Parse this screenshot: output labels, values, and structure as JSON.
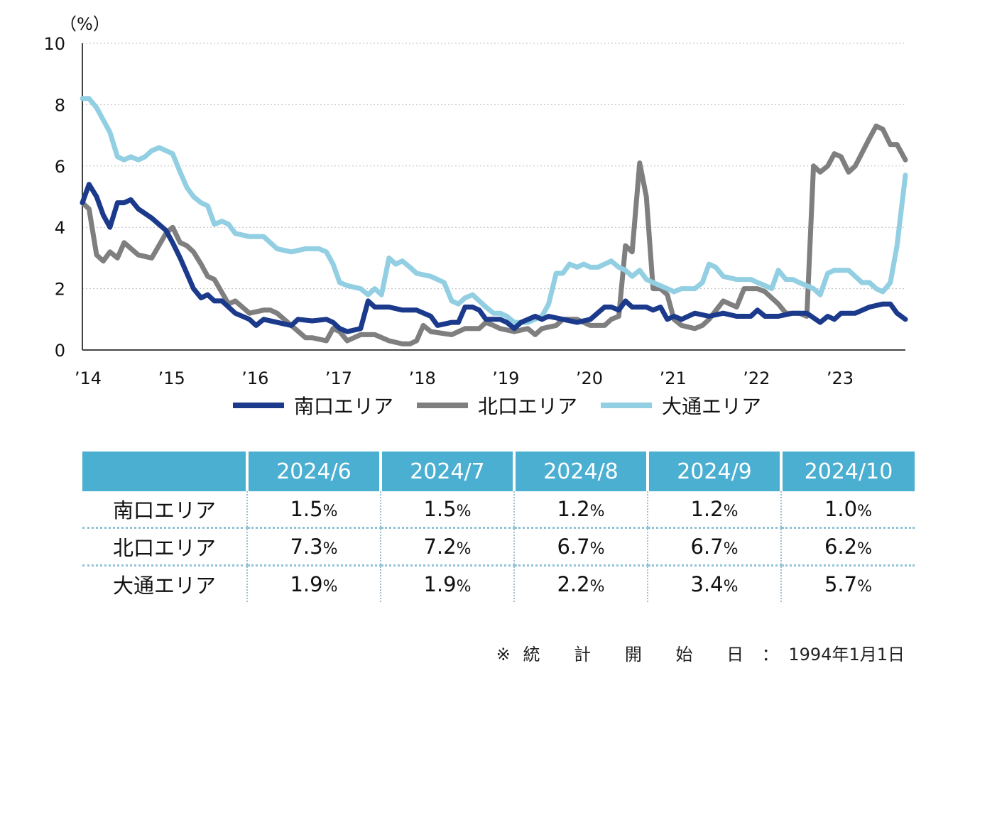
{
  "chart_data": {
    "type": "line",
    "unit_label": "（%）",
    "ylim": [
      0,
      10
    ],
    "yticks": [
      0,
      2,
      4,
      6,
      8,
      10
    ],
    "xlim": [
      2014.0,
      2023.85
    ],
    "xticks": [
      {
        "x": 2014,
        "label": "'14"
      },
      {
        "x": 2015,
        "label": "'15"
      },
      {
        "x": 2016,
        "label": "'16"
      },
      {
        "x": 2017,
        "label": "'17"
      },
      {
        "x": 2018,
        "label": "'18"
      },
      {
        "x": 2019,
        "label": "'19"
      },
      {
        "x": 2020,
        "label": "'20"
      },
      {
        "x": 2021,
        "label": "'21"
      },
      {
        "x": 2022,
        "label": "'22"
      },
      {
        "x": 2023,
        "label": "'23"
      }
    ],
    "grid": "horizontal dotted",
    "legend_position": "bottom",
    "series": [
      {
        "name": "南口エリア",
        "color": "#1b3a8c",
        "points": [
          [
            2014.0,
            4.8
          ],
          [
            2014.08,
            5.4
          ],
          [
            2014.17,
            5.0
          ],
          [
            2014.25,
            4.4
          ],
          [
            2014.33,
            4.0
          ],
          [
            2014.42,
            4.8
          ],
          [
            2014.5,
            4.8
          ],
          [
            2014.58,
            4.9
          ],
          [
            2014.67,
            4.6
          ],
          [
            2014.83,
            4.3
          ],
          [
            2015.0,
            3.9
          ],
          [
            2015.08,
            3.5
          ],
          [
            2015.17,
            3.0
          ],
          [
            2015.25,
            2.5
          ],
          [
            2015.33,
            2.0
          ],
          [
            2015.42,
            1.7
          ],
          [
            2015.5,
            1.8
          ],
          [
            2015.58,
            1.6
          ],
          [
            2015.67,
            1.6
          ],
          [
            2015.83,
            1.2
          ],
          [
            2016.0,
            1.0
          ],
          [
            2016.08,
            0.8
          ],
          [
            2016.17,
            1.0
          ],
          [
            2016.33,
            0.9
          ],
          [
            2016.5,
            0.8
          ],
          [
            2016.58,
            1.0
          ],
          [
            2016.75,
            0.95
          ],
          [
            2016.92,
            1.0
          ],
          [
            2017.0,
            0.9
          ],
          [
            2017.08,
            0.7
          ],
          [
            2017.17,
            0.6
          ],
          [
            2017.33,
            0.7
          ],
          [
            2017.42,
            1.6
          ],
          [
            2017.5,
            1.4
          ],
          [
            2017.67,
            1.4
          ],
          [
            2017.83,
            1.3
          ],
          [
            2018.0,
            1.3
          ],
          [
            2018.17,
            1.1
          ],
          [
            2018.25,
            0.8
          ],
          [
            2018.42,
            0.9
          ],
          [
            2018.5,
            0.9
          ],
          [
            2018.58,
            1.4
          ],
          [
            2018.67,
            1.4
          ],
          [
            2018.75,
            1.3
          ],
          [
            2018.83,
            1.0
          ],
          [
            2019.0,
            1.0
          ],
          [
            2019.08,
            0.9
          ],
          [
            2019.17,
            0.7
          ],
          [
            2019.25,
            0.9
          ],
          [
            2019.42,
            1.1
          ],
          [
            2019.5,
            1.0
          ],
          [
            2019.58,
            1.1
          ],
          [
            2019.75,
            1.0
          ],
          [
            2019.92,
            0.9
          ],
          [
            2020.08,
            1.0
          ],
          [
            2020.25,
            1.4
          ],
          [
            2020.33,
            1.4
          ],
          [
            2020.42,
            1.3
          ],
          [
            2020.5,
            1.6
          ],
          [
            2020.58,
            1.4
          ],
          [
            2020.75,
            1.4
          ],
          [
            2020.83,
            1.3
          ],
          [
            2020.92,
            1.4
          ],
          [
            2021.0,
            1.0
          ],
          [
            2021.08,
            1.1
          ],
          [
            2021.17,
            1.0
          ],
          [
            2021.33,
            1.2
          ],
          [
            2021.5,
            1.1
          ],
          [
            2021.67,
            1.2
          ],
          [
            2021.83,
            1.1
          ],
          [
            2022.0,
            1.1
          ],
          [
            2022.08,
            1.3
          ],
          [
            2022.17,
            1.1
          ],
          [
            2022.33,
            1.1
          ],
          [
            2022.5,
            1.2
          ],
          [
            2022.67,
            1.2
          ],
          [
            2022.83,
            0.9
          ],
          [
            2022.92,
            1.1
          ],
          [
            2023.0,
            1.0
          ],
          [
            2023.08,
            1.2
          ],
          [
            2023.25,
            1.2
          ],
          [
            2023.42,
            1.4
          ],
          [
            2023.58,
            1.5
          ],
          [
            2023.67,
            1.5
          ],
          [
            2023.75,
            1.2
          ],
          [
            2023.85,
            1.0
          ]
        ]
      },
      {
        "name": "北口エリア",
        "color": "#7f7f7f",
        "points": [
          [
            2014.0,
            4.8
          ],
          [
            2014.08,
            4.6
          ],
          [
            2014.17,
            3.1
          ],
          [
            2014.25,
            2.9
          ],
          [
            2014.33,
            3.2
          ],
          [
            2014.42,
            3.0
          ],
          [
            2014.5,
            3.5
          ],
          [
            2014.67,
            3.1
          ],
          [
            2014.83,
            3.0
          ],
          [
            2015.0,
            3.8
          ],
          [
            2015.08,
            4.0
          ],
          [
            2015.17,
            3.5
          ],
          [
            2015.25,
            3.4
          ],
          [
            2015.33,
            3.2
          ],
          [
            2015.42,
            2.8
          ],
          [
            2015.5,
            2.4
          ],
          [
            2015.58,
            2.3
          ],
          [
            2015.75,
            1.5
          ],
          [
            2015.83,
            1.6
          ],
          [
            2016.0,
            1.2
          ],
          [
            2016.17,
            1.3
          ],
          [
            2016.25,
            1.3
          ],
          [
            2016.33,
            1.2
          ],
          [
            2016.5,
            0.8
          ],
          [
            2016.67,
            0.4
          ],
          [
            2016.75,
            0.4
          ],
          [
            2016.92,
            0.3
          ],
          [
            2017.0,
            0.7
          ],
          [
            2017.08,
            0.6
          ],
          [
            2017.17,
            0.3
          ],
          [
            2017.33,
            0.5
          ],
          [
            2017.5,
            0.5
          ],
          [
            2017.67,
            0.3
          ],
          [
            2017.83,
            0.2
          ],
          [
            2017.92,
            0.2
          ],
          [
            2018.0,
            0.3
          ],
          [
            2018.08,
            0.8
          ],
          [
            2018.17,
            0.6
          ],
          [
            2018.42,
            0.5
          ],
          [
            2018.58,
            0.7
          ],
          [
            2018.75,
            0.7
          ],
          [
            2018.83,
            0.9
          ],
          [
            2018.92,
            0.8
          ],
          [
            2019.0,
            0.7
          ],
          [
            2019.17,
            0.6
          ],
          [
            2019.33,
            0.7
          ],
          [
            2019.42,
            0.5
          ],
          [
            2019.5,
            0.7
          ],
          [
            2019.67,
            0.8
          ],
          [
            2019.75,
            1.0
          ],
          [
            2019.92,
            1.0
          ],
          [
            2020.08,
            0.8
          ],
          [
            2020.25,
            0.8
          ],
          [
            2020.33,
            1.0
          ],
          [
            2020.42,
            1.1
          ],
          [
            2020.5,
            3.4
          ],
          [
            2020.58,
            3.2
          ],
          [
            2020.67,
            6.1
          ],
          [
            2020.75,
            5.0
          ],
          [
            2020.83,
            2.0
          ],
          [
            2020.92,
            2.0
          ],
          [
            2021.0,
            1.8
          ],
          [
            2021.08,
            1.0
          ],
          [
            2021.17,
            0.8
          ],
          [
            2021.33,
            0.7
          ],
          [
            2021.42,
            0.8
          ],
          [
            2021.5,
            1.0
          ],
          [
            2021.67,
            1.6
          ],
          [
            2021.75,
            1.5
          ],
          [
            2021.83,
            1.4
          ],
          [
            2021.92,
            2.0
          ],
          [
            2022.0,
            2.0
          ],
          [
            2022.08,
            2.0
          ],
          [
            2022.17,
            1.9
          ],
          [
            2022.33,
            1.5
          ],
          [
            2022.42,
            1.2
          ],
          [
            2022.58,
            1.2
          ],
          [
            2022.67,
            1.1
          ],
          [
            2022.75,
            6.0
          ],
          [
            2022.83,
            5.8
          ],
          [
            2022.92,
            6.0
          ],
          [
            2023.0,
            6.4
          ],
          [
            2023.08,
            6.3
          ],
          [
            2023.17,
            5.8
          ],
          [
            2023.25,
            6.0
          ],
          [
            2023.42,
            6.9
          ],
          [
            2023.5,
            7.3
          ],
          [
            2023.58,
            7.2
          ],
          [
            2023.67,
            6.7
          ],
          [
            2023.75,
            6.7
          ],
          [
            2023.85,
            6.2
          ]
        ]
      },
      {
        "name": "大通エリア",
        "color": "#92cfe2",
        "points": [
          [
            2014.0,
            8.2
          ],
          [
            2014.08,
            8.2
          ],
          [
            2014.17,
            7.9
          ],
          [
            2014.25,
            7.5
          ],
          [
            2014.33,
            7.1
          ],
          [
            2014.42,
            6.3
          ],
          [
            2014.5,
            6.2
          ],
          [
            2014.58,
            6.3
          ],
          [
            2014.67,
            6.2
          ],
          [
            2014.75,
            6.3
          ],
          [
            2014.83,
            6.5
          ],
          [
            2014.92,
            6.6
          ],
          [
            2015.0,
            6.5
          ],
          [
            2015.08,
            6.4
          ],
          [
            2015.17,
            5.8
          ],
          [
            2015.25,
            5.3
          ],
          [
            2015.33,
            5.0
          ],
          [
            2015.42,
            4.8
          ],
          [
            2015.5,
            4.7
          ],
          [
            2015.58,
            4.1
          ],
          [
            2015.67,
            4.2
          ],
          [
            2015.75,
            4.1
          ],
          [
            2015.83,
            3.8
          ],
          [
            2016.0,
            3.7
          ],
          [
            2016.08,
            3.7
          ],
          [
            2016.17,
            3.7
          ],
          [
            2016.25,
            3.5
          ],
          [
            2016.33,
            3.3
          ],
          [
            2016.5,
            3.2
          ],
          [
            2016.67,
            3.3
          ],
          [
            2016.83,
            3.3
          ],
          [
            2016.92,
            3.2
          ],
          [
            2017.0,
            2.8
          ],
          [
            2017.08,
            2.2
          ],
          [
            2017.17,
            2.1
          ],
          [
            2017.33,
            2.0
          ],
          [
            2017.42,
            1.8
          ],
          [
            2017.5,
            2.0
          ],
          [
            2017.58,
            1.8
          ],
          [
            2017.67,
            3.0
          ],
          [
            2017.75,
            2.8
          ],
          [
            2017.83,
            2.9
          ],
          [
            2017.92,
            2.7
          ],
          [
            2018.0,
            2.5
          ],
          [
            2018.17,
            2.4
          ],
          [
            2018.33,
            2.2
          ],
          [
            2018.42,
            1.6
          ],
          [
            2018.5,
            1.5
          ],
          [
            2018.58,
            1.7
          ],
          [
            2018.67,
            1.8
          ],
          [
            2018.83,
            1.4
          ],
          [
            2018.92,
            1.2
          ],
          [
            2019.0,
            1.2
          ],
          [
            2019.08,
            1.1
          ],
          [
            2019.17,
            0.9
          ],
          [
            2019.33,
            0.9
          ],
          [
            2019.5,
            1.1
          ],
          [
            2019.58,
            1.5
          ],
          [
            2019.67,
            2.5
          ],
          [
            2019.75,
            2.5
          ],
          [
            2019.83,
            2.8
          ],
          [
            2019.92,
            2.7
          ],
          [
            2020.0,
            2.8
          ],
          [
            2020.08,
            2.7
          ],
          [
            2020.17,
            2.7
          ],
          [
            2020.25,
            2.8
          ],
          [
            2020.33,
            2.9
          ],
          [
            2020.42,
            2.7
          ],
          [
            2020.5,
            2.6
          ],
          [
            2020.58,
            2.4
          ],
          [
            2020.67,
            2.6
          ],
          [
            2020.75,
            2.3
          ],
          [
            2020.83,
            2.2
          ],
          [
            2021.0,
            2.0
          ],
          [
            2021.08,
            1.9
          ],
          [
            2021.17,
            2.0
          ],
          [
            2021.33,
            2.0
          ],
          [
            2021.42,
            2.2
          ],
          [
            2021.5,
            2.8
          ],
          [
            2021.58,
            2.7
          ],
          [
            2021.67,
            2.4
          ],
          [
            2021.83,
            2.3
          ],
          [
            2022.0,
            2.3
          ],
          [
            2022.08,
            2.2
          ],
          [
            2022.17,
            2.1
          ],
          [
            2022.25,
            2.0
          ],
          [
            2022.33,
            2.6
          ],
          [
            2022.42,
            2.3
          ],
          [
            2022.5,
            2.3
          ],
          [
            2022.58,
            2.2
          ],
          [
            2022.75,
            2.0
          ],
          [
            2022.83,
            1.8
          ],
          [
            2022.92,
            2.5
          ],
          [
            2023.0,
            2.6
          ],
          [
            2023.17,
            2.6
          ],
          [
            2023.25,
            2.4
          ],
          [
            2023.33,
            2.2
          ],
          [
            2023.42,
            2.2
          ],
          [
            2023.5,
            2.0
          ],
          [
            2023.58,
            1.9
          ],
          [
            2023.67,
            2.2
          ],
          [
            2023.75,
            3.4
          ],
          [
            2023.85,
            5.7
          ]
        ]
      }
    ]
  },
  "table": {
    "headers": [
      "",
      "2024/6",
      "2024/7",
      "2024/8",
      "2024/9",
      "2024/10"
    ],
    "percent_sign": "%",
    "rows": [
      {
        "area": "南口エリア",
        "values": [
          "1.5",
          "1.5",
          "1.2",
          "1.2",
          "1.0"
        ]
      },
      {
        "area": "北口エリア",
        "values": [
          "7.3",
          "7.2",
          "6.7",
          "6.7",
          "6.2"
        ]
      },
      {
        "area": "大通エリア",
        "values": [
          "1.9",
          "1.9",
          "2.2",
          "3.4",
          "5.7"
        ]
      }
    ]
  },
  "note": {
    "mark": "※",
    "label_chars": [
      "統",
      "計",
      "開",
      "始",
      "日"
    ],
    "colon": "：",
    "date": "1994年1月1日"
  }
}
